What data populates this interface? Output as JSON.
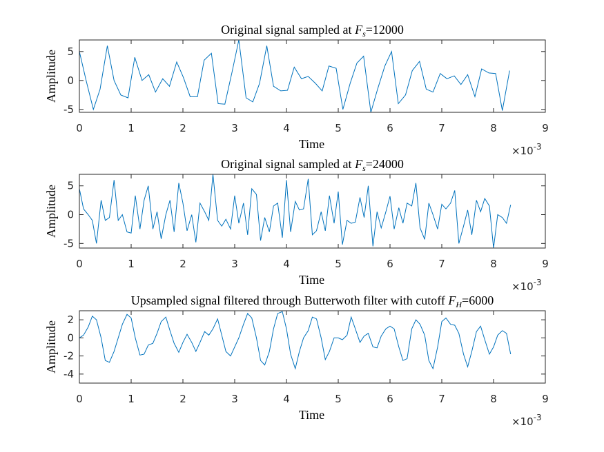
{
  "chart_data": [
    {
      "type": "line",
      "title": "Original signal sampled at ",
      "title_symbol": "F",
      "title_subscript": "s",
      "title_value": "=12000",
      "xlabel": "Time",
      "ylabel": "Amplitude",
      "x_exponent_base": "×10",
      "x_exponent": "-3",
      "color": "#0072bd",
      "xlim": [
        0,
        9
      ],
      "xticks": [
        0,
        1,
        2,
        3,
        4,
        5,
        6,
        7,
        8,
        9
      ],
      "ylim": [
        -5.5,
        7
      ],
      "yticks": [
        -5,
        0,
        5
      ],
      "x": [
        0,
        0.13,
        0.27,
        0.4,
        0.54,
        0.67,
        0.8,
        0.94,
        1.07,
        1.21,
        1.34,
        1.47,
        1.61,
        1.74,
        1.88,
        2.01,
        2.14,
        2.28,
        2.41,
        2.55,
        2.68,
        2.81,
        2.95,
        3.08,
        3.22,
        3.35,
        3.48,
        3.62,
        3.75,
        3.89,
        4.02,
        4.15,
        4.29,
        4.42,
        4.56,
        4.69,
        4.82,
        4.96,
        5.09,
        5.23,
        5.36,
        5.49,
        5.63,
        5.76,
        5.9,
        6.03,
        6.16,
        6.3,
        6.43,
        6.57,
        6.7,
        6.83,
        6.97,
        7.1,
        7.24,
        7.37,
        7.5,
        7.64,
        7.77,
        7.91,
        8.04,
        8.17,
        8.31
      ],
      "values": [
        5,
        0,
        -5,
        -1.5,
        6,
        0,
        -2.5,
        -3,
        4,
        0,
        1,
        -2,
        0.3,
        -1,
        3.2,
        0.5,
        -2.8,
        -2.8,
        3.5,
        4.7,
        -4,
        -4.1,
        1.5,
        7,
        -3,
        -3.7,
        -0.5,
        6,
        -1,
        -1.8,
        -1.7,
        2.3,
        0.3,
        0.7,
        -0.5,
        -1.8,
        2.5,
        2.1,
        -5,
        -0.5,
        3,
        4.2,
        -5.5,
        -1.5,
        2.5,
        5,
        -4,
        -2.5,
        1.7,
        3.3,
        -1.5,
        -2,
        1.2,
        0.3,
        0.8,
        -0.7,
        1,
        -2.8,
        2,
        1.3,
        1.2,
        -5.2,
        1.7
      ]
    },
    {
      "type": "line",
      "title": "Original signal sampled at ",
      "title_symbol": "F",
      "title_subscript": "s",
      "title_value": "=24000",
      "xlabel": "Time",
      "ylabel": "Amplitude",
      "x_exponent_base": "×10",
      "x_exponent": "-3",
      "color": "#0072bd",
      "xlim": [
        0,
        9
      ],
      "xticks": [
        0,
        1,
        2,
        3,
        4,
        5,
        6,
        7,
        8,
        9
      ],
      "ylim": [
        -5.8,
        7
      ],
      "yticks": [
        -5,
        0,
        5
      ],
      "x": [
        0,
        0.08,
        0.17,
        0.25,
        0.33,
        0.42,
        0.5,
        0.58,
        0.67,
        0.75,
        0.83,
        0.92,
        1,
        1.08,
        1.17,
        1.25,
        1.33,
        1.42,
        1.5,
        1.58,
        1.67,
        1.75,
        1.83,
        1.92,
        2,
        2.08,
        2.17,
        2.25,
        2.33,
        2.42,
        2.5,
        2.58,
        2.67,
        2.75,
        2.83,
        2.92,
        3,
        3.08,
        3.17,
        3.25,
        3.33,
        3.42,
        3.5,
        3.58,
        3.67,
        3.75,
        3.83,
        3.92,
        4,
        4.08,
        4.17,
        4.25,
        4.33,
        4.42,
        4.5,
        4.58,
        4.67,
        4.75,
        4.83,
        4.92,
        5,
        5.08,
        5.17,
        5.25,
        5.33,
        5.42,
        5.5,
        5.58,
        5.67,
        5.75,
        5.83,
        5.92,
        6,
        6.08,
        6.17,
        6.25,
        6.33,
        6.42,
        6.5,
        6.58,
        6.67,
        6.75,
        6.83,
        6.92,
        7,
        7.08,
        7.17,
        7.25,
        7.33,
        7.42,
        7.5,
        7.58,
        7.67,
        7.75,
        7.83,
        7.92,
        8,
        8.08,
        8.17,
        8.25,
        8.33
      ],
      "values": [
        4.5,
        1,
        0,
        -1,
        -5,
        2.5,
        -1,
        -0.5,
        6,
        -1,
        0,
        -3,
        -3.2,
        3.3,
        -2.5,
        2.5,
        5,
        -2.5,
        0.5,
        -4.2,
        0,
        2.5,
        -3,
        5.5,
        2,
        -2.8,
        0,
        -4.8,
        2,
        0.5,
        -1,
        7,
        -1,
        -2,
        -0.8,
        -2.5,
        3.3,
        -1.5,
        2,
        -3.5,
        4.5,
        3.5,
        -4.5,
        -0.5,
        -3,
        1.5,
        2,
        -4,
        6,
        -3,
        2.3,
        0.8,
        1,
        6.2,
        -3.5,
        -2.8,
        0.5,
        -2.8,
        3.3,
        -1.5,
        4,
        -5.2,
        -1,
        -1.5,
        -1.3,
        3,
        -0.5,
        5,
        -5.5,
        0.5,
        -2.3,
        0.5,
        3.2,
        -2.5,
        1.2,
        -1.5,
        2,
        1.5,
        5.5,
        -2.3,
        -4.3,
        2,
        0,
        -2.5,
        1.8,
        1,
        2,
        4.2,
        -5,
        -2,
        0.8,
        -3.5,
        2.5,
        0.5,
        2.8,
        1.5,
        -5.8,
        0,
        -0.5,
        -1.5,
        1.7
      ]
    },
    {
      "type": "line",
      "title": "Upsampled signal filtered through Butterwoth filter with cutoff ",
      "title_symbol": "F",
      "title_subscript": "H",
      "title_value": "=6000",
      "xlabel": "Time",
      "ylabel": "Amplitude",
      "x_exponent_base": "×10",
      "x_exponent": "-3",
      "color": "#0072bd",
      "xlim": [
        0,
        9
      ],
      "xticks": [
        0,
        1,
        2,
        3,
        4,
        5,
        6,
        7,
        8,
        9
      ],
      "ylim": [
        -5,
        3
      ],
      "yticks": [
        -4,
        -2,
        0,
        2
      ],
      "x": [
        0,
        0.08,
        0.17,
        0.25,
        0.33,
        0.42,
        0.5,
        0.58,
        0.67,
        0.75,
        0.83,
        0.92,
        1,
        1.08,
        1.17,
        1.25,
        1.33,
        1.42,
        1.5,
        1.58,
        1.67,
        1.75,
        1.83,
        1.92,
        2,
        2.08,
        2.17,
        2.25,
        2.33,
        2.42,
        2.5,
        2.58,
        2.67,
        2.75,
        2.83,
        2.92,
        3,
        3.08,
        3.17,
        3.25,
        3.33,
        3.42,
        3.5,
        3.58,
        3.67,
        3.75,
        3.83,
        3.92,
        4,
        4.08,
        4.17,
        4.25,
        4.33,
        4.42,
        4.5,
        4.58,
        4.67,
        4.75,
        4.83,
        4.92,
        5,
        5.08,
        5.17,
        5.25,
        5.33,
        5.42,
        5.5,
        5.58,
        5.67,
        5.75,
        5.83,
        5.92,
        6,
        6.08,
        6.17,
        6.25,
        6.33,
        6.42,
        6.5,
        6.58,
        6.67,
        6.75,
        6.83,
        6.92,
        7,
        7.08,
        7.17,
        7.25,
        7.33,
        7.42,
        7.5,
        7.58,
        7.67,
        7.75,
        7.83,
        7.92,
        8,
        8.08,
        8.17,
        8.25,
        8.33
      ],
      "values": [
        0,
        0.3,
        1.2,
        2.4,
        2,
        0,
        -2.5,
        -2.7,
        -1.5,
        0,
        1.5,
        2.6,
        2.2,
        0,
        -1.9,
        -1.8,
        -0.8,
        -0.6,
        0.5,
        1.8,
        2.3,
        0.8,
        -0.6,
        -1.6,
        -0.5,
        0.4,
        -0.5,
        -1.5,
        -0.5,
        0.7,
        0.3,
        1,
        2.1,
        0.3,
        -1.5,
        -2,
        -1,
        0,
        1.5,
        2.7,
        2.2,
        0,
        -2.5,
        -3,
        -1.5,
        1,
        2.7,
        2.9,
        1,
        -1.8,
        -3.4,
        -1.5,
        0,
        0.8,
        2.3,
        2.1,
        0,
        -2.4,
        -1.5,
        0,
        0,
        -0.2,
        0.3,
        2.3,
        1,
        -0.5,
        0.2,
        0.5,
        -1,
        -1.1,
        0.2,
        1,
        1.3,
        1,
        -1,
        -2.5,
        -2.3,
        1,
        2,
        1.5,
        0.3,
        -2.5,
        -3.4,
        -1,
        1.8,
        2.2,
        1.5,
        1.4,
        0.5,
        -1.8,
        -3.2,
        -1.5,
        0.7,
        1.3,
        -0.2,
        -1.8,
        -1,
        0.3,
        0.8,
        0.5,
        -1.8
      ]
    }
  ]
}
